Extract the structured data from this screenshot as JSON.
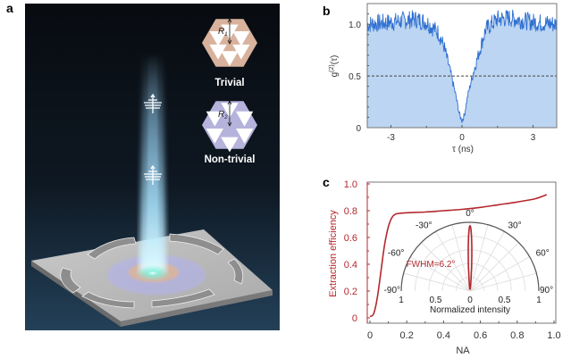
{
  "panels": {
    "a": {
      "label": "a",
      "insets": [
        {
          "name": "Trivial",
          "radius_label": "R",
          "radius_sub": "1",
          "color": "#d8b29c"
        },
        {
          "name": "Non-trivial",
          "radius_label": "R",
          "radius_sub": "2",
          "color": "#b5b3dc"
        }
      ]
    },
    "b": {
      "label": "b"
    },
    "c": {
      "label": "c"
    }
  },
  "colors": {
    "bg_dark": "#0b1118",
    "beam": "#8fd0f0",
    "g2_line": "#2e6fd0",
    "g2_fill": "#bcd5f2",
    "efficiency": "#b3282d",
    "axis": "#555555"
  },
  "chart_data": [
    {
      "id": "b",
      "type": "area",
      "title": "",
      "xlabel": "τ (ns)",
      "ylabel_main": "g",
      "ylabel_sup": "(2)",
      "ylabel_tail": "(τ)",
      "xlim": [
        -4,
        4
      ],
      "ylim": [
        0,
        1.2
      ],
      "xticks": [
        -3,
        0,
        3
      ],
      "xtick_labels": [
        "-3",
        "0",
        "3"
      ],
      "yticks": [
        0,
        0.5,
        1.0
      ],
      "ytick_labels": [
        "0",
        "0.5",
        "1.0"
      ],
      "reference_line": {
        "y": 0.5,
        "style": "dashed"
      },
      "series": [
        {
          "name": "g2",
          "description": "antibunching dip",
          "x": [
            -4,
            -3,
            -2,
            -1.5,
            -1,
            -0.75,
            -0.5,
            -0.25,
            -0.1,
            0,
            0.1,
            0.25,
            0.5,
            0.75,
            1,
            1.5,
            2,
            3,
            4
          ],
          "y": [
            1.0,
            1.02,
            1.05,
            1.02,
            0.92,
            0.78,
            0.55,
            0.3,
            0.12,
            0.07,
            0.12,
            0.32,
            0.55,
            0.75,
            0.95,
            1.05,
            1.06,
            1.02,
            1.0
          ]
        }
      ]
    },
    {
      "id": "c",
      "type": "line",
      "title": "",
      "xlabel": "NA",
      "ylabel": "Extraction efficiency",
      "xlim": [
        0,
        1.0
      ],
      "ylim": [
        0,
        1.0
      ],
      "xticks": [
        0,
        0.2,
        0.4,
        0.6,
        0.8,
        1.0
      ],
      "xtick_labels": [
        "0",
        "0.2",
        "0.4",
        "0.6",
        "0.8",
        "1.0"
      ],
      "yticks": [
        0,
        0.2,
        0.4,
        0.6,
        0.8,
        1.0
      ],
      "ytick_labels": [
        "0",
        "0.2",
        "0.4",
        "0.6",
        "0.8",
        "1.0"
      ],
      "series": [
        {
          "name": "Extraction efficiency",
          "x": [
            0,
            0.02,
            0.04,
            0.06,
            0.08,
            0.1,
            0.12,
            0.14,
            0.16,
            0.2,
            0.3,
            0.4,
            0.5,
            0.6,
            0.7,
            0.8,
            0.9,
            0.96
          ],
          "y": [
            0.01,
            0.03,
            0.15,
            0.35,
            0.55,
            0.68,
            0.75,
            0.775,
            0.78,
            0.785,
            0.79,
            0.8,
            0.81,
            0.825,
            0.845,
            0.865,
            0.89,
            0.92
          ]
        }
      ],
      "inset": {
        "type": "polar",
        "angle_labels": [
          "-90°",
          "-60°",
          "-30°",
          "0°",
          "30°",
          "60°",
          "90°"
        ],
        "angles": [
          -90,
          -60,
          -30,
          0,
          30,
          60,
          90
        ],
        "radial_tick_labels": [
          "1",
          "0.5",
          "0",
          "0.5",
          "1"
        ],
        "radial_label": "Normalized intensity",
        "annotation": "FWHM=6.2°",
        "fwhm_deg": 6.2
      }
    }
  ]
}
